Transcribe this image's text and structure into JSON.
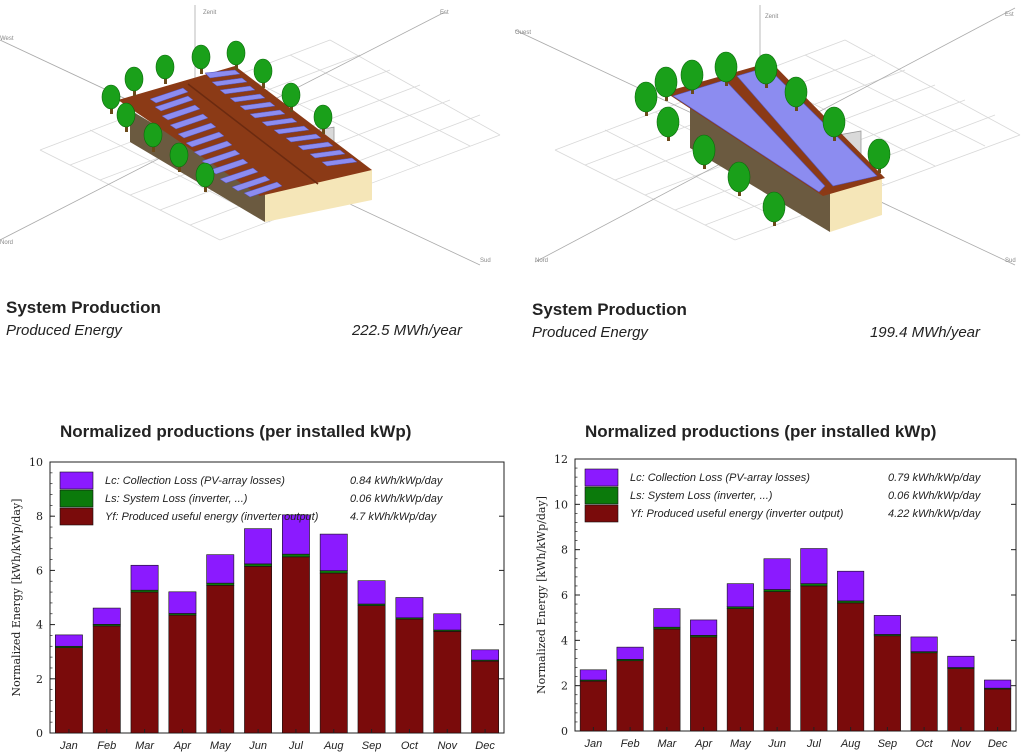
{
  "panels": [
    {
      "scene": {
        "axis_labels": [
          "Zenit",
          "West",
          "Est",
          "Nord",
          "Sud",
          "Ouest"
        ]
      },
      "system": {
        "title": "System Production",
        "label": "Produced Energy",
        "value": "222.5 MWh/year"
      },
      "chart_title": "Normalized productions (per installed kWp)",
      "chart_data": {
        "type": "bar",
        "stacked": true,
        "categories": [
          "Jan",
          "Feb",
          "Mar",
          "Apr",
          "May",
          "Jun",
          "Jul",
          "Aug",
          "Sep",
          "Oct",
          "Nov",
          "Dec"
        ],
        "ylabel": "Normalized Energy [kWh/kWp/day]",
        "ylim": [
          0,
          10
        ],
        "yticks": [
          "0",
          "2",
          "4",
          "6",
          "8",
          "10"
        ],
        "legend_placement": "top-left",
        "series": [
          {
            "name": "Yf: Produced useful energy  (inverter output)",
            "legend_value": "4.7 kWh/kWp/day",
            "color": "#7a0b0b",
            "values": [
              3.15,
              3.95,
              5.2,
              4.35,
              5.45,
              6.15,
              6.5,
              5.9,
              4.7,
              4.2,
              3.75,
              2.65
            ]
          },
          {
            "name": "Ls: System Loss  (inverter, ...)",
            "legend_value": "0.06 kWh/kWp/day",
            "color": "#0b7a0b",
            "values": [
              0.05,
              0.06,
              0.07,
              0.06,
              0.08,
              0.09,
              0.1,
              0.09,
              0.06,
              0.05,
              0.05,
              0.04
            ]
          },
          {
            "name": "Lc: Collection Loss (PV-array losses)",
            "legend_value": "0.84 kWh/kWp/day",
            "color": "#8b1aff",
            "values": [
              0.42,
              0.6,
              0.92,
              0.8,
              1.05,
              1.3,
              1.45,
              1.35,
              0.86,
              0.75,
              0.6,
              0.38
            ]
          }
        ]
      }
    },
    {
      "scene": {
        "axis_labels": [
          "Zenit",
          "West",
          "Est",
          "Nord",
          "Sud",
          "Ouest"
        ]
      },
      "system": {
        "title": "System Production",
        "label": "Produced Energy",
        "value": "199.4 MWh/year"
      },
      "chart_title": "Normalized productions (per installed kWp)",
      "chart_data": {
        "type": "bar",
        "stacked": true,
        "categories": [
          "Jan",
          "Feb",
          "Mar",
          "Apr",
          "May",
          "Jun",
          "Jul",
          "Aug",
          "Sep",
          "Oct",
          "Nov",
          "Dec"
        ],
        "ylabel": "Normalized Energy [kWh/kWp/day]",
        "ylim": [
          0,
          12
        ],
        "yticks": [
          "0",
          "2",
          "4",
          "6",
          "8",
          "10",
          "12"
        ],
        "legend_placement": "top-left",
        "series": [
          {
            "name": "Yf: Produced useful energy  (inverter output)",
            "legend_value": "4.22 kWh/kWp/day",
            "color": "#7a0b0b",
            "values": [
              2.2,
              3.1,
              4.5,
              4.15,
              5.4,
              6.15,
              6.4,
              5.65,
              4.2,
              3.45,
              2.75,
              1.85
            ]
          },
          {
            "name": "Ls: System Loss  (inverter, ...)",
            "legend_value": "0.06 kWh/kWp/day",
            "color": "#0b7a0b",
            "values": [
              0.05,
              0.06,
              0.08,
              0.07,
              0.08,
              0.09,
              0.1,
              0.09,
              0.06,
              0.05,
              0.05,
              0.04
            ]
          },
          {
            "name": "Lc: Collection Loss (PV-array losses)",
            "legend_value": "0.79 kWh/kWp/day",
            "color": "#8b1aff",
            "values": [
              0.45,
              0.54,
              0.82,
              0.68,
              1.02,
              1.36,
              1.55,
              1.31,
              0.84,
              0.65,
              0.5,
              0.36
            ]
          }
        ]
      }
    }
  ]
}
